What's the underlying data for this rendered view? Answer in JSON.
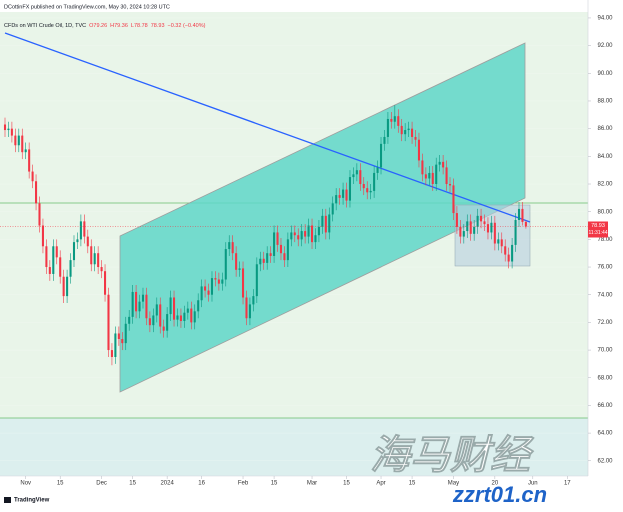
{
  "chart_data": {
    "type": "candlestick",
    "publisher_line": "DCottinFX published on TradingView.com, May 30, 2024 10:28 UTC",
    "symbol_title": "CFDs on WTI Crude Oil, 1D, TVC",
    "ohlc_readout": [
      "O79.26",
      "H79.36",
      "L78.78",
      "78.93",
      "−0.32 (−0.40%)"
    ],
    "last_price_label": "78.93",
    "countdown_label": "11:31:44",
    "watermark": [
      "海马财经",
      "zzrt01.cn"
    ],
    "footer": "TradingView",
    "up_color": "#089981",
    "down_color": "#f23645",
    "xlim": [
      -1.45,
      169
    ],
    "xticks": [
      {
        "value": 6,
        "label": "Nov"
      },
      {
        "value": 16,
        "label": "15"
      },
      {
        "value": 28,
        "label": "Dec"
      },
      {
        "value": 37,
        "label": "15"
      },
      {
        "value": 47,
        "label": "2024"
      },
      {
        "value": 57,
        "label": "16"
      },
      {
        "value": 69,
        "label": "Feb"
      },
      {
        "value": 78,
        "label": "15"
      },
      {
        "value": 89,
        "label": "Mar"
      },
      {
        "value": 99,
        "label": "15"
      },
      {
        "value": 109,
        "label": "Apr"
      },
      {
        "value": 118,
        "label": "15"
      },
      {
        "value": 130,
        "label": "May"
      },
      {
        "value": 142,
        "label": "20"
      },
      {
        "value": 153,
        "label": "Jun"
      },
      {
        "value": 163,
        "label": "17"
      }
    ],
    "ylim": [
      60.9,
      94.43
    ],
    "yticks": [
      {
        "value": 94,
        "label": "94.00"
      },
      {
        "value": 92,
        "label": "92.00"
      },
      {
        "value": 90,
        "label": "90.00"
      },
      {
        "value": 88,
        "label": "88.00"
      },
      {
        "value": 86,
        "label": "86.00"
      },
      {
        "value": 84,
        "label": "84.00"
      },
      {
        "value": 82,
        "label": "82.00"
      },
      {
        "value": 80,
        "label": "80.00"
      },
      {
        "value": 78,
        "label": "78.00"
      },
      {
        "value": 76,
        "label": "76.00"
      },
      {
        "value": 74,
        "label": "74.00"
      },
      {
        "value": 72,
        "label": "72.00"
      },
      {
        "value": 70,
        "label": "70.00"
      },
      {
        "value": 68,
        "label": "68.00"
      },
      {
        "value": 66,
        "label": "66.00"
      },
      {
        "value": 64,
        "label": "64.00"
      },
      {
        "value": 62,
        "label": "62.00"
      }
    ],
    "candles": [
      [
        86.3,
        86.8,
        85.4,
        85.9
      ],
      [
        85.9,
        86.5,
        85.4,
        86.0
      ],
      [
        86.0,
        86.5,
        85.0,
        85.5
      ],
      [
        85.5,
        86.0,
        84.3,
        84.8
      ],
      [
        84.8,
        86.0,
        84.3,
        85.5
      ],
      [
        85.5,
        86.0,
        83.8,
        84.3
      ],
      [
        84.3,
        85.0,
        83.8,
        84.5
      ],
      [
        84.5,
        85.0,
        82.4,
        82.9
      ],
      [
        82.9,
        83.4,
        81.7,
        82.2
      ],
      [
        82.2,
        82.7,
        80.1,
        80.6
      ],
      [
        80.6,
        81.1,
        78.5,
        79.0
      ],
      [
        79.0,
        79.5,
        77.0,
        77.5
      ],
      [
        77.5,
        78.0,
        75.5,
        76.0
      ],
      [
        76.0,
        76.5,
        75.0,
        75.5
      ],
      [
        75.5,
        78.0,
        75.0,
        77.5
      ],
      [
        77.5,
        78.0,
        76.2,
        76.7
      ],
      [
        76.7,
        77.2,
        74.8,
        75.3
      ],
      [
        75.3,
        75.8,
        73.4,
        73.9
      ],
      [
        73.9,
        75.8,
        73.4,
        75.3
      ],
      [
        75.3,
        77.0,
        74.8,
        76.5
      ],
      [
        76.5,
        78.3,
        76.0,
        77.8
      ],
      [
        77.8,
        78.5,
        77.3,
        78.0
      ],
      [
        78.0,
        79.8,
        77.5,
        79.3
      ],
      [
        79.3,
        79.8,
        77.7,
        78.2
      ],
      [
        78.2,
        78.7,
        77.0,
        77.5
      ],
      [
        77.5,
        78.0,
        75.7,
        76.2
      ],
      [
        76.2,
        77.5,
        75.7,
        77.0
      ],
      [
        77.0,
        77.5,
        75.5,
        76.0
      ],
      [
        76.0,
        76.5,
        75.2,
        75.7
      ],
      [
        75.7,
        76.2,
        73.5,
        74.0
      ],
      [
        74.0,
        74.5,
        69.5,
        70.0
      ],
      [
        70.0,
        70.5,
        68.9,
        69.5
      ],
      [
        69.5,
        71.7,
        69.0,
        71.2
      ],
      [
        71.2,
        71.7,
        70.3,
        70.8
      ],
      [
        70.8,
        71.3,
        70.0,
        70.5
      ],
      [
        70.5,
        72.4,
        70.0,
        71.9
      ],
      [
        71.9,
        72.9,
        71.4,
        72.4
      ],
      [
        72.4,
        74.7,
        71.9,
        74.2
      ],
      [
        74.2,
        74.7,
        72.3,
        72.8
      ],
      [
        72.8,
        74.0,
        72.3,
        73.5
      ],
      [
        73.5,
        74.5,
        73.0,
        74.0
      ],
      [
        74.0,
        74.5,
        71.8,
        72.3
      ],
      [
        72.3,
        72.8,
        71.3,
        71.8
      ],
      [
        71.8,
        73.0,
        71.3,
        72.5
      ],
      [
        72.5,
        73.8,
        72.0,
        73.3
      ],
      [
        73.3,
        73.8,
        71.2,
        71.7
      ],
      [
        71.7,
        72.2,
        70.9,
        71.4
      ],
      [
        71.4,
        73.1,
        70.9,
        72.6
      ],
      [
        72.6,
        74.3,
        72.1,
        73.8
      ],
      [
        73.8,
        74.3,
        71.7,
        72.2
      ],
      [
        72.2,
        73.0,
        71.7,
        72.5
      ],
      [
        72.5,
        73.0,
        71.6,
        72.1
      ],
      [
        72.1,
        73.2,
        71.6,
        72.7
      ],
      [
        72.7,
        73.5,
        72.2,
        73.0
      ],
      [
        73.0,
        73.5,
        71.5,
        72.0
      ],
      [
        72.0,
        73.3,
        71.5,
        72.8
      ],
      [
        72.8,
        74.1,
        72.3,
        73.6
      ],
      [
        73.6,
        75.1,
        73.1,
        74.6
      ],
      [
        74.6,
        75.1,
        73.8,
        74.3
      ],
      [
        74.3,
        74.8,
        73.5,
        74.0
      ],
      [
        74.0,
        75.7,
        73.5,
        75.2
      ],
      [
        75.2,
        75.7,
        74.6,
        75.1
      ],
      [
        75.1,
        75.6,
        74.3,
        74.8
      ],
      [
        74.8,
        75.6,
        74.3,
        75.1
      ],
      [
        75.1,
        77.8,
        74.6,
        77.3
      ],
      [
        77.3,
        78.3,
        76.8,
        77.8
      ],
      [
        77.8,
        78.3,
        76.5,
        77.0
      ],
      [
        77.0,
        77.5,
        75.3,
        75.8
      ],
      [
        75.8,
        76.4,
        75.3,
        75.9
      ],
      [
        75.9,
        76.4,
        73.3,
        73.8
      ],
      [
        73.8,
        74.3,
        71.8,
        72.3
      ],
      [
        72.3,
        73.8,
        71.8,
        73.3
      ],
      [
        73.3,
        74.4,
        72.8,
        73.9
      ],
      [
        73.9,
        76.7,
        73.4,
        76.2
      ],
      [
        76.2,
        77.1,
        75.7,
        76.6
      ],
      [
        76.6,
        77.1,
        75.8,
        76.3
      ],
      [
        76.3,
        77.5,
        75.8,
        77.0
      ],
      [
        77.0,
        77.5,
        76.3,
        76.8
      ],
      [
        76.8,
        79.0,
        76.3,
        78.5
      ],
      [
        78.5,
        79.0,
        77.1,
        77.6
      ],
      [
        77.6,
        78.1,
        76.5,
        77.0
      ],
      [
        77.0,
        77.5,
        76.0,
        76.5
      ],
      [
        76.5,
        78.5,
        76.0,
        78.0
      ],
      [
        78.0,
        79.0,
        77.5,
        78.5
      ],
      [
        78.5,
        79.0,
        77.8,
        78.3
      ],
      [
        78.3,
        78.8,
        77.5,
        78.0
      ],
      [
        78.0,
        79.1,
        77.5,
        78.6
      ],
      [
        78.6,
        79.1,
        77.7,
        78.2
      ],
      [
        78.2,
        79.5,
        77.7,
        79.0
      ],
      [
        79.0,
        79.5,
        77.3,
        77.8
      ],
      [
        77.8,
        78.8,
        77.3,
        78.3
      ],
      [
        78.3,
        79.4,
        77.8,
        78.9
      ],
      [
        78.9,
        80.2,
        78.4,
        79.7
      ],
      [
        79.7,
        80.2,
        78.0,
        78.5
      ],
      [
        78.5,
        80.3,
        78.0,
        79.8
      ],
      [
        79.8,
        81.1,
        79.3,
        80.6
      ],
      [
        80.6,
        81.7,
        80.1,
        81.2
      ],
      [
        81.2,
        81.7,
        80.5,
        81.0
      ],
      [
        81.0,
        82.1,
        80.5,
        81.6
      ],
      [
        81.6,
        82.1,
        80.3,
        80.8
      ],
      [
        80.8,
        83.0,
        80.3,
        82.5
      ],
      [
        82.5,
        83.2,
        82.0,
        82.7
      ],
      [
        82.7,
        83.5,
        82.2,
        83.0
      ],
      [
        83.0,
        83.5,
        81.5,
        82.0
      ],
      [
        82.0,
        82.5,
        81.2,
        81.7
      ],
      [
        81.7,
        82.2,
        80.9,
        81.4
      ],
      [
        81.4,
        82.0,
        80.9,
        81.5
      ],
      [
        81.5,
        83.3,
        81.0,
        82.8
      ],
      [
        82.8,
        83.7,
        82.3,
        83.2
      ],
      [
        83.2,
        85.4,
        82.7,
        84.9
      ],
      [
        84.9,
        85.9,
        84.4,
        85.4
      ],
      [
        85.4,
        87.2,
        84.9,
        86.7
      ],
      [
        86.7,
        87.2,
        86.0,
        86.5
      ],
      [
        86.5,
        87.7,
        86.0,
        86.9
      ],
      [
        86.9,
        87.4,
        85.7,
        86.2
      ],
      [
        86.2,
        86.7,
        85.1,
        85.6
      ],
      [
        85.6,
        86.4,
        85.1,
        85.9
      ],
      [
        85.9,
        86.5,
        85.4,
        86.0
      ],
      [
        86.0,
        86.5,
        84.9,
        85.4
      ],
      [
        85.4,
        85.9,
        84.7,
        85.2
      ],
      [
        85.2,
        85.7,
        83.2,
        83.7
      ],
      [
        83.7,
        84.2,
        82.2,
        82.7
      ],
      [
        82.7,
        83.2,
        81.9,
        82.4
      ],
      [
        82.4,
        83.3,
        81.9,
        82.8
      ],
      [
        82.8,
        83.3,
        81.5,
        82.0
      ],
      [
        82.0,
        83.9,
        81.5,
        83.4
      ],
      [
        83.4,
        84.1,
        82.9,
        83.6
      ],
      [
        83.6,
        84.1,
        82.7,
        83.2
      ],
      [
        83.2,
        83.7,
        81.5,
        82.0
      ],
      [
        82.0,
        82.5,
        81.4,
        81.9
      ],
      [
        81.9,
        82.4,
        79.4,
        79.9
      ],
      [
        79.9,
        80.4,
        78.4,
        78.9
      ],
      [
        78.9,
        79.4,
        77.7,
        78.2
      ],
      [
        78.2,
        79.1,
        77.7,
        78.6
      ],
      [
        78.6,
        79.8,
        78.1,
        79.3
      ],
      [
        79.3,
        79.8,
        77.9,
        78.4
      ],
      [
        78.4,
        79.4,
        77.9,
        78.9
      ],
      [
        78.9,
        80.2,
        78.4,
        79.7
      ],
      [
        79.7,
        80.2,
        78.8,
        79.3
      ],
      [
        79.3,
        79.8,
        78.6,
        79.1
      ],
      [
        79.1,
        79.6,
        78.0,
        78.5
      ],
      [
        78.5,
        79.7,
        78.0,
        79.2
      ],
      [
        79.2,
        79.7,
        77.2,
        77.7
      ],
      [
        77.7,
        78.5,
        77.2,
        78.0
      ],
      [
        78.0,
        78.5,
        77.0,
        77.5
      ],
      [
        77.5,
        78.0,
        76.4,
        76.9
      ],
      [
        76.9,
        77.4,
        75.9,
        76.4
      ],
      [
        76.4,
        78.1,
        75.9,
        77.6
      ],
      [
        77.6,
        79.9,
        77.1,
        79.4
      ],
      [
        79.4,
        80.7,
        78.9,
        80.2
      ],
      [
        80.2,
        80.7,
        79.0,
        79.26
      ],
      [
        79.26,
        79.36,
        78.78,
        78.93
      ]
    ]
  }
}
